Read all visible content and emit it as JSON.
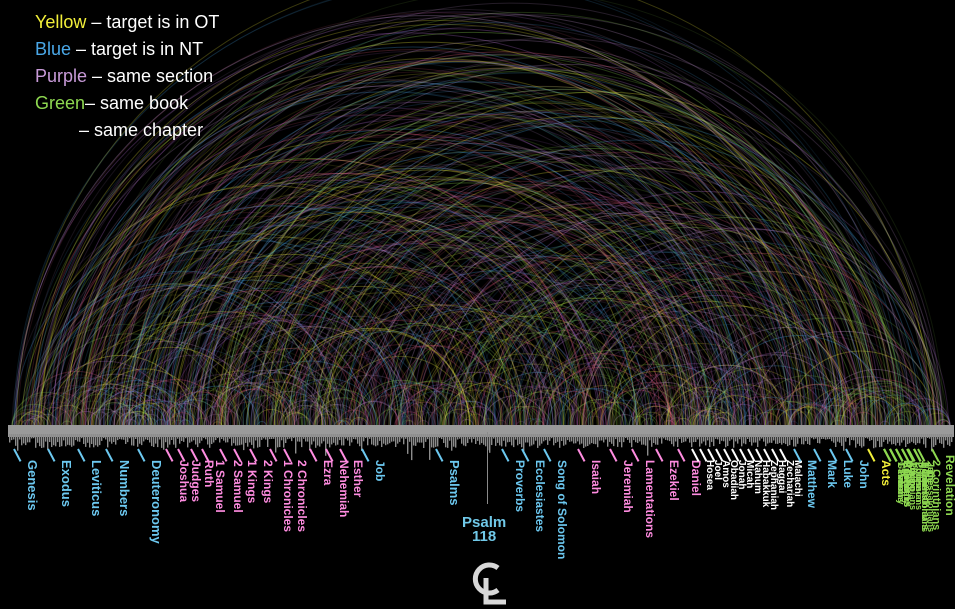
{
  "legend": [
    {
      "color_word": "Yellow",
      "rest": " – target is in OT",
      "color": "#f2ef3a"
    },
    {
      "color_word": "Blue",
      "rest": " – target is in NT",
      "color": "#4aa8e8"
    },
    {
      "color_word": "Purple",
      "rest": " – same section",
      "color": "#c89ad8"
    },
    {
      "color_word": "Green",
      "rest": "– same book",
      "color": "#8ed850"
    },
    {
      "color_word": "",
      "rest": "– same chapter",
      "color": "#ffffff"
    }
  ],
  "colors": {
    "yellow": "#f2ef3a",
    "blue": "#4aa8e8",
    "purple": "#c89ad8",
    "green": "#8ed850",
    "pink": "#ff8ce0",
    "cyan": "#6cc8f0",
    "white": "#ffffff",
    "axis": "#9a9a9a"
  },
  "books": [
    {
      "name": "Genesis",
      "color": "#6cc8f0",
      "size": 13
    },
    {
      "name": "Exodus",
      "color": "#6cc8f0",
      "size": 13
    },
    {
      "name": "Leviticus",
      "color": "#6cc8f0",
      "size": 13
    },
    {
      "name": "Numbers",
      "color": "#6cc8f0",
      "size": 13
    },
    {
      "name": "Deuteronomy",
      "color": "#6cc8f0",
      "size": 13
    },
    {
      "name": "Joshua",
      "color": "#ff8ce0",
      "size": 12
    },
    {
      "name": "Judges",
      "color": "#ff8ce0",
      "size": 12
    },
    {
      "name": "Ruth",
      "color": "#ff8ce0",
      "size": 12
    },
    {
      "name": "1 Samuel",
      "color": "#ff8ce0",
      "size": 12
    },
    {
      "name": "2 Samuel",
      "color": "#ff8ce0",
      "size": 12
    },
    {
      "name": "1 Kings",
      "color": "#ff8ce0",
      "size": 12
    },
    {
      "name": "2 Kings",
      "color": "#ff8ce0",
      "size": 12
    },
    {
      "name": "1 Chronicles",
      "color": "#ff8ce0",
      "size": 12
    },
    {
      "name": "2 Chronicles",
      "color": "#ff8ce0",
      "size": 12
    },
    {
      "name": "Ezra",
      "color": "#ff8ce0",
      "size": 12
    },
    {
      "name": "Nehemiah",
      "color": "#ff8ce0",
      "size": 12
    },
    {
      "name": "Esther",
      "color": "#ff8ce0",
      "size": 12
    },
    {
      "name": "Job",
      "color": "#6cc8f0",
      "size": 12
    },
    {
      "name": "Psalms",
      "color": "#6cc8f0",
      "size": 13
    },
    {
      "name": "Proverbs",
      "color": "#6cc8f0",
      "size": 12
    },
    {
      "name": "Ecclesiastes",
      "color": "#6cc8f0",
      "size": 12
    },
    {
      "name": "Song of Solomon",
      "color": "#6cc8f0",
      "size": 12
    },
    {
      "name": "Isaiah",
      "color": "#ff8ce0",
      "size": 12
    },
    {
      "name": "Jeremiah",
      "color": "#ff8ce0",
      "size": 12
    },
    {
      "name": "Lamentations",
      "color": "#ff8ce0",
      "size": 12
    },
    {
      "name": "Ezekiel",
      "color": "#ff8ce0",
      "size": 12
    },
    {
      "name": "Daniel",
      "color": "#ff8ce0",
      "size": 12
    },
    {
      "name": "Hosea",
      "color": "#ffffff",
      "size": 10
    },
    {
      "name": "Joel",
      "color": "#ffffff",
      "size": 10
    },
    {
      "name": "Amos",
      "color": "#ffffff",
      "size": 10
    },
    {
      "name": "Obadiah",
      "color": "#ffffff",
      "size": 10
    },
    {
      "name": "Jonah",
      "color": "#ffffff",
      "size": 10
    },
    {
      "name": "Micah",
      "color": "#ffffff",
      "size": 10
    },
    {
      "name": "Nahum",
      "color": "#ffffff",
      "size": 10
    },
    {
      "name": "Habakkuk",
      "color": "#ffffff",
      "size": 10
    },
    {
      "name": "Zephaniah",
      "color": "#ffffff",
      "size": 10
    },
    {
      "name": "Haggai",
      "color": "#ffffff",
      "size": 10
    },
    {
      "name": "Zechariah",
      "color": "#ffffff",
      "size": 10
    },
    {
      "name": "Malachi",
      "color": "#ffffff",
      "size": 10
    },
    {
      "name": "Matthew",
      "color": "#6cc8f0",
      "size": 12
    },
    {
      "name": "Mark",
      "color": "#6cc8f0",
      "size": 12
    },
    {
      "name": "Luke",
      "color": "#6cc8f0",
      "size": 12
    },
    {
      "name": "John",
      "color": "#6cc8f0",
      "size": 12
    },
    {
      "name": "Acts",
      "color": "#f2ef3a",
      "size": 12
    },
    {
      "name": "Romans",
      "color": "#8ed850",
      "size": 12
    },
    {
      "name": "1 Corinthians",
      "color": "#8ed850",
      "size": 11
    },
    {
      "name": "2 Corinthians",
      "color": "#8ed850",
      "size": 11
    },
    {
      "name": "Galatians",
      "color": "#8ed850",
      "size": 9
    },
    {
      "name": "Ephesians",
      "color": "#8ed850",
      "size": 9
    },
    {
      "name": "Philippians",
      "color": "#8ed850",
      "size": 9
    },
    {
      "name": "Colossians",
      "color": "#8ed850",
      "size": 9
    },
    {
      "name": "1 Thessalonians",
      "color": "#8ed850",
      "size": 9
    },
    {
      "name": "2 Thessalonians",
      "color": "#8ed850",
      "size": 9
    },
    {
      "name": "1 Timothy",
      "color": "#8ed850",
      "size": 9
    },
    {
      "name": "2 Timothy",
      "color": "#8ed850",
      "size": 9
    },
    {
      "name": "Titus",
      "color": "#8ed850",
      "size": 9
    },
    {
      "name": "Philemon",
      "color": "#8ed850",
      "size": 9
    },
    {
      "name": "Hebrews",
      "color": "#8ed850",
      "size": 9
    },
    {
      "name": "James",
      "color": "#8ed850",
      "size": 9
    },
    {
      "name": "1 Peter",
      "color": "#8ed850",
      "size": 9
    },
    {
      "name": "2 Peter",
      "color": "#8ed850",
      "size": 9
    },
    {
      "name": "1 John",
      "color": "#8ed850",
      "size": 9
    },
    {
      "name": "2 John",
      "color": "#8ed850",
      "size": 9
    },
    {
      "name": "3 John",
      "color": "#8ed850",
      "size": 9
    },
    {
      "name": "Jude",
      "color": "#8ed850",
      "size": 9
    },
    {
      "name": "Revelation",
      "color": "#8ed850",
      "size": 12
    }
  ],
  "psalm_marker": [
    "Psalm",
    "118"
  ],
  "logo_letters": "CL"
}
